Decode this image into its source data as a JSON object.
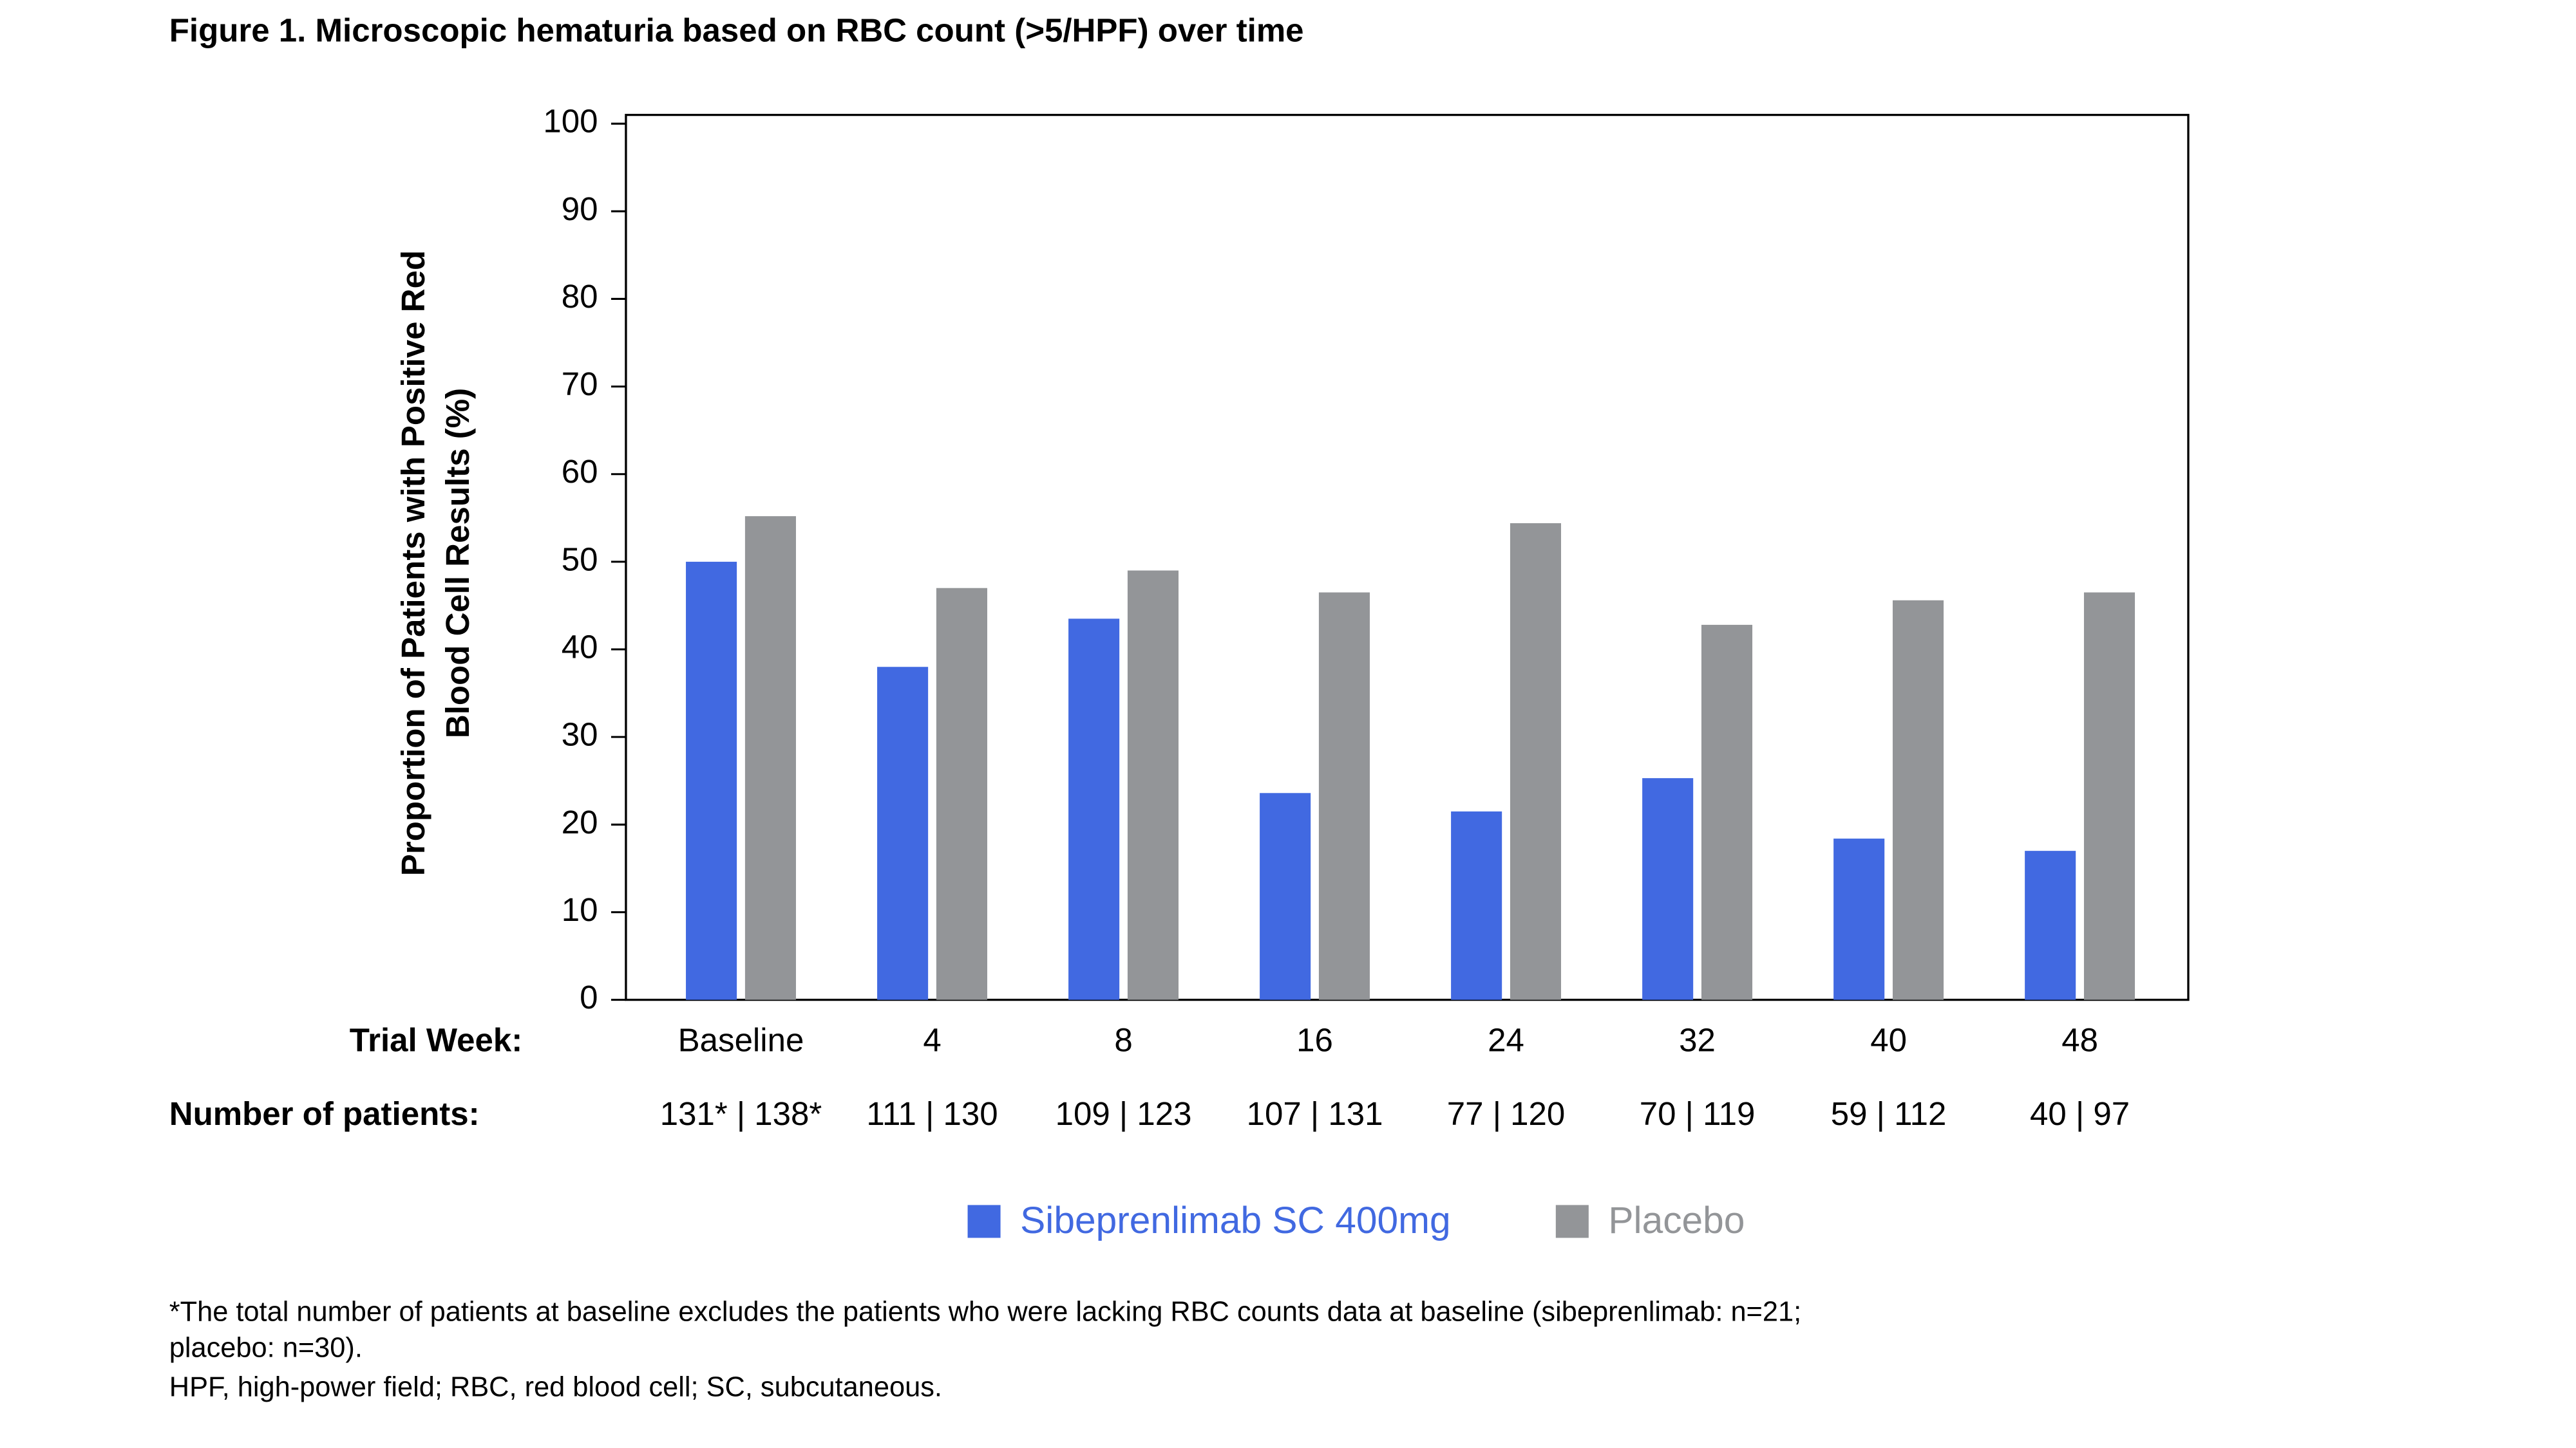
{
  "chart_data": {
    "type": "bar",
    "title": "Figure 1. Microscopic hematuria based on RBC count (>5/HPF) over time",
    "y_label": [
      "Proportion of Patients with Positive Red",
      "Blood Cell Results (%)"
    ],
    "x_label": "Trial Week:",
    "categories": [
      "Baseline",
      "4",
      "8",
      "16",
      "24",
      "32",
      "40",
      "48"
    ],
    "patients_label": "Number of patients:",
    "patient_counts": [
      "131* | 138*",
      "111 | 130",
      "109 | 123",
      "107 | 131",
      "77 | 120",
      "70 | 119",
      "59 | 112",
      "40 | 97"
    ],
    "series": [
      {
        "name": "Sibeprenlimab SC 400mg",
        "color": "#4169e1",
        "values": [
          50,
          38,
          43.5,
          23.6,
          21.5,
          25.3,
          18.4,
          17
        ]
      },
      {
        "name": "Placebo",
        "color": "#939598",
        "values": [
          55.2,
          47,
          49,
          46.5,
          54.4,
          42.8,
          45.6,
          46.5
        ]
      }
    ],
    "ylim": [
      0,
      101
    ],
    "yticks": [
      0,
      10,
      20,
      30,
      40,
      50,
      60,
      70,
      80,
      90,
      100
    ],
    "grid": false,
    "footnotes": [
      "*The total number of patients at baseline excludes the patients who were lacking RBC counts data at baseline (sibeprenlimab: n=21;",
      "placebo: n=30).",
      "HPF, high-power field; RBC, red blood cell; SC, subcutaneous."
    ]
  }
}
